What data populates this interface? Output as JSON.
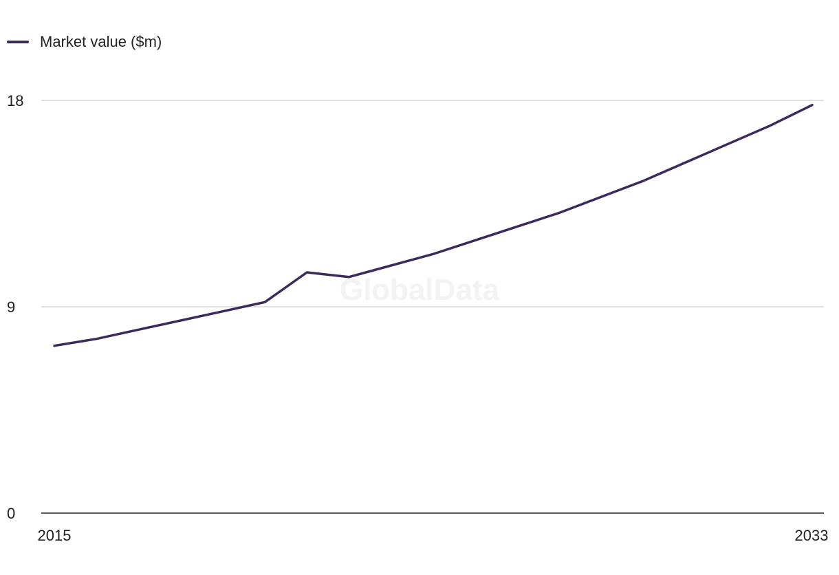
{
  "watermark": "GlobalData",
  "chart_data": {
    "type": "line",
    "x": [
      2015,
      2016,
      2017,
      2018,
      2019,
      2020,
      2021,
      2022,
      2023,
      2024,
      2025,
      2026,
      2027,
      2028,
      2029,
      2030,
      2031,
      2032,
      2033
    ],
    "series": [
      {
        "name": "Market value ($m)",
        "color": "#3b2a5c",
        "values": [
          7.3,
          7.6,
          8.0,
          8.4,
          8.8,
          9.2,
          10.5,
          10.3,
          10.8,
          11.3,
          11.9,
          12.5,
          13.1,
          13.8,
          14.5,
          15.3,
          16.1,
          16.9,
          17.8
        ]
      }
    ],
    "y_ticks": [
      "0",
      "9",
      "18"
    ],
    "x_tick_labels": [
      "2015",
      "2033"
    ],
    "ylim": [
      0,
      18
    ],
    "grid": true,
    "legend_position": "top-left",
    "xlabel": "",
    "ylabel": "",
    "title": ""
  }
}
